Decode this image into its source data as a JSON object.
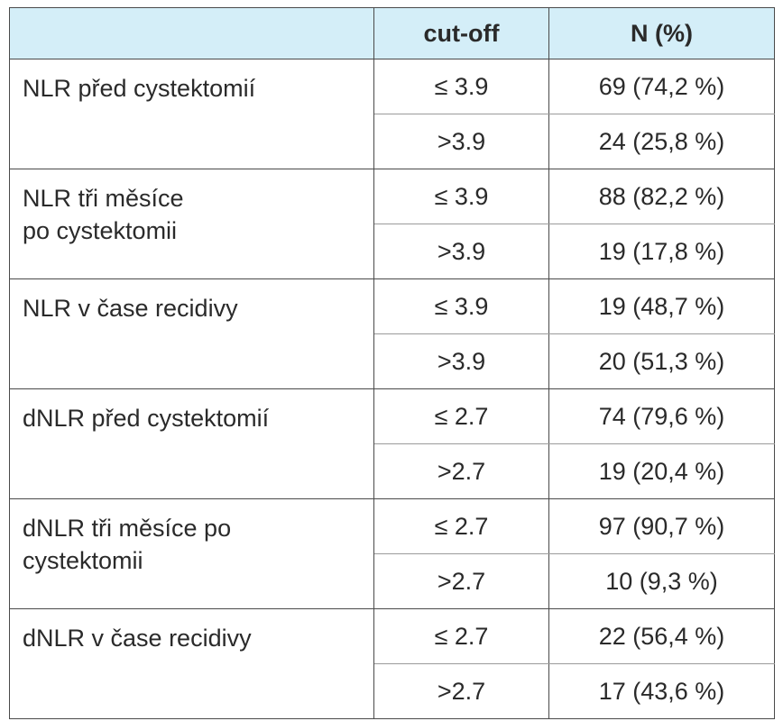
{
  "table": {
    "headers": {
      "label": "",
      "cutoff": "cut-off",
      "n": "N (%)"
    },
    "groups": [
      {
        "label": "NLR před cystektomií",
        "rows": [
          {
            "cutoff": "≤ 3.9",
            "n": "69 (74,2 %)"
          },
          {
            "cutoff": ">3.9",
            "n": "24 (25,8 %)"
          }
        ]
      },
      {
        "label": "NLR tři měsíce\npo cystektomii",
        "rows": [
          {
            "cutoff": "≤ 3.9",
            "n": "88 (82,2 %)"
          },
          {
            "cutoff": ">3.9",
            "n": "19 (17,8 %)"
          }
        ]
      },
      {
        "label": "NLR v čase recidivy",
        "rows": [
          {
            "cutoff": "≤ 3.9",
            "n": "19 (48,7 %)"
          },
          {
            "cutoff": ">3.9",
            "n": "20 (51,3 %)"
          }
        ]
      },
      {
        "label": "dNLR před cystektomií",
        "rows": [
          {
            "cutoff": "≤ 2.7",
            "n": "74 (79,6 %)"
          },
          {
            "cutoff": ">2.7",
            "n": "19 (20,4 %)"
          }
        ]
      },
      {
        "label": "dNLR tři měsíce po\ncystektomii",
        "rows": [
          {
            "cutoff": "≤ 2.7",
            "n": "97 (90,7 %)"
          },
          {
            "cutoff": ">2.7",
            "n": "10 (9,3 %)"
          }
        ]
      },
      {
        "label": "dNLR v čase recidivy",
        "rows": [
          {
            "cutoff": "≤ 2.7",
            "n": "22 (56,4 %)"
          },
          {
            "cutoff": ">2.7",
            "n": "17 (43,6 %)"
          }
        ]
      }
    ]
  }
}
